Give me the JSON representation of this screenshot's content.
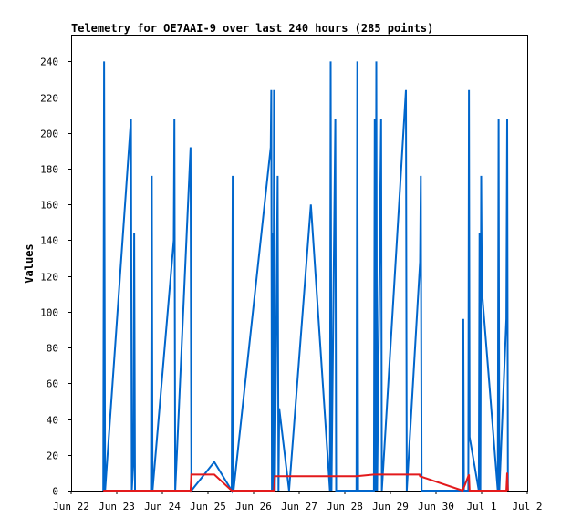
{
  "chart_data": {
    "type": "line",
    "title": "Telemetry for OE7AAI-9 over last 240 hours (285 points)",
    "ylabel": "Values",
    "xlabel": "",
    "ylim": [
      0,
      255
    ],
    "xlim": [
      "2023-06-22T00:00",
      "2023-07-02T00:00"
    ],
    "x_ticks": [
      "Jun 22",
      "Jun 23",
      "Jun 24",
      "Jun 25",
      "Jun 26",
      "Jun 27",
      "Jun 28",
      "Jun 29",
      "Jun 30",
      "Jul 1",
      "Jul 2"
    ],
    "y_ticks": [
      0,
      20,
      40,
      60,
      80,
      100,
      120,
      140,
      160,
      180,
      200,
      220,
      240
    ],
    "grid": false,
    "colors": {
      "blue": "#0066cc",
      "red": "#e31a1c",
      "axis": "#000000"
    },
    "series": [
      {
        "color": "#0066cc",
        "points": [
          [
            "2023-06-22T16:55",
            0
          ],
          [
            "2023-06-22T17:20",
            240
          ],
          [
            "2023-06-22T17:50",
            0
          ],
          [
            "2023-06-23T07:30",
            208
          ],
          [
            "2023-06-23T07:55",
            0
          ],
          [
            "2023-06-23T08:45",
            16
          ],
          [
            "2023-06-23T09:10",
            144
          ],
          [
            "2023-06-23T09:35",
            0
          ],
          [
            "2023-06-23T18:00",
            0
          ],
          [
            "2023-06-23T18:25",
            176
          ],
          [
            "2023-06-23T18:50",
            0
          ],
          [
            "2023-06-24T06:00",
            140
          ],
          [
            "2023-06-24T06:20",
            208
          ],
          [
            "2023-06-24T06:45",
            0
          ],
          [
            "2023-06-24T14:50",
            192
          ],
          [
            "2023-06-24T15:15",
            0
          ],
          [
            "2023-06-25T03:20",
            16
          ],
          [
            "2023-06-25T12:30",
            0
          ],
          [
            "2023-06-25T13:00",
            176
          ],
          [
            "2023-06-25T13:25",
            0
          ],
          [
            "2023-06-26T09:00",
            192
          ],
          [
            "2023-06-26T09:20",
            224
          ],
          [
            "2023-06-26T09:40",
            0
          ],
          [
            "2023-06-26T10:05",
            144
          ],
          [
            "2023-06-26T10:25",
            0
          ],
          [
            "2023-06-26T10:45",
            224
          ],
          [
            "2023-06-26T11:10",
            0
          ],
          [
            "2023-06-26T12:40",
            176
          ],
          [
            "2023-06-26T13:05",
            0
          ],
          [
            "2023-06-26T13:30",
            46
          ],
          [
            "2023-06-26T18:40",
            0
          ],
          [
            "2023-06-27T06:10",
            160
          ],
          [
            "2023-06-27T16:10",
            0
          ],
          [
            "2023-06-27T16:35",
            240
          ],
          [
            "2023-06-27T17:00",
            0
          ],
          [
            "2023-06-27T19:00",
            208
          ],
          [
            "2023-06-27T19:25",
            0
          ],
          [
            "2023-06-28T06:10",
            0
          ],
          [
            "2023-06-28T06:35",
            240
          ],
          [
            "2023-06-28T07:00",
            0
          ],
          [
            "2023-06-28T15:20",
            0
          ],
          [
            "2023-06-28T15:45",
            208
          ],
          [
            "2023-06-28T16:10",
            0
          ],
          [
            "2023-06-28T16:35",
            240
          ],
          [
            "2023-06-28T17:00",
            0
          ],
          [
            "2023-06-28T19:05",
            208
          ],
          [
            "2023-06-28T19:30",
            0
          ],
          [
            "2023-06-29T08:10",
            224
          ],
          [
            "2023-06-29T08:35",
            0
          ],
          [
            "2023-06-29T15:35",
            128
          ],
          [
            "2023-06-29T16:00",
            176
          ],
          [
            "2023-06-29T16:25",
            0
          ],
          [
            "2023-06-30T14:00",
            0
          ],
          [
            "2023-06-30T14:20",
            96
          ],
          [
            "2023-06-30T14:40",
            0
          ],
          [
            "2023-06-30T17:00",
            0
          ],
          [
            "2023-06-30T17:20",
            224
          ],
          [
            "2023-06-30T17:40",
            30
          ],
          [
            "2023-06-30T22:30",
            0
          ],
          [
            "2023-06-30T22:55",
            144
          ],
          [
            "2023-06-30T23:20",
            0
          ],
          [
            "2023-06-30T23:45",
            176
          ],
          [
            "2023-07-01T00:10",
            112
          ],
          [
            "2023-07-01T08:30",
            0
          ],
          [
            "2023-07-01T08:55",
            208
          ],
          [
            "2023-07-01T09:20",
            0
          ],
          [
            "2023-07-01T13:00",
            96
          ],
          [
            "2023-07-01T13:25",
            208
          ],
          [
            "2023-07-01T13:50",
            0
          ]
        ]
      },
      {
        "color": "#e31a1c",
        "points": [
          [
            "2023-06-22T16:55",
            0
          ],
          [
            "2023-06-24T14:50",
            0
          ],
          [
            "2023-06-24T15:15",
            9
          ],
          [
            "2023-06-25T03:20",
            9
          ],
          [
            "2023-06-25T12:30",
            0
          ],
          [
            "2023-06-26T10:45",
            0
          ],
          [
            "2023-06-26T11:10",
            8
          ],
          [
            "2023-06-28T06:10",
            8
          ],
          [
            "2023-06-28T15:20",
            9
          ],
          [
            "2023-06-29T15:20",
            9
          ],
          [
            "2023-06-29T15:35",
            8
          ],
          [
            "2023-06-30T14:00",
            0
          ],
          [
            "2023-06-30T17:20",
            9
          ],
          [
            "2023-06-30T17:40",
            0
          ],
          [
            "2023-07-01T08:30",
            0
          ],
          [
            "2023-07-01T13:00",
            0
          ],
          [
            "2023-07-01T13:25",
            10
          ],
          [
            "2023-07-01T13:50",
            0
          ]
        ]
      }
    ]
  }
}
